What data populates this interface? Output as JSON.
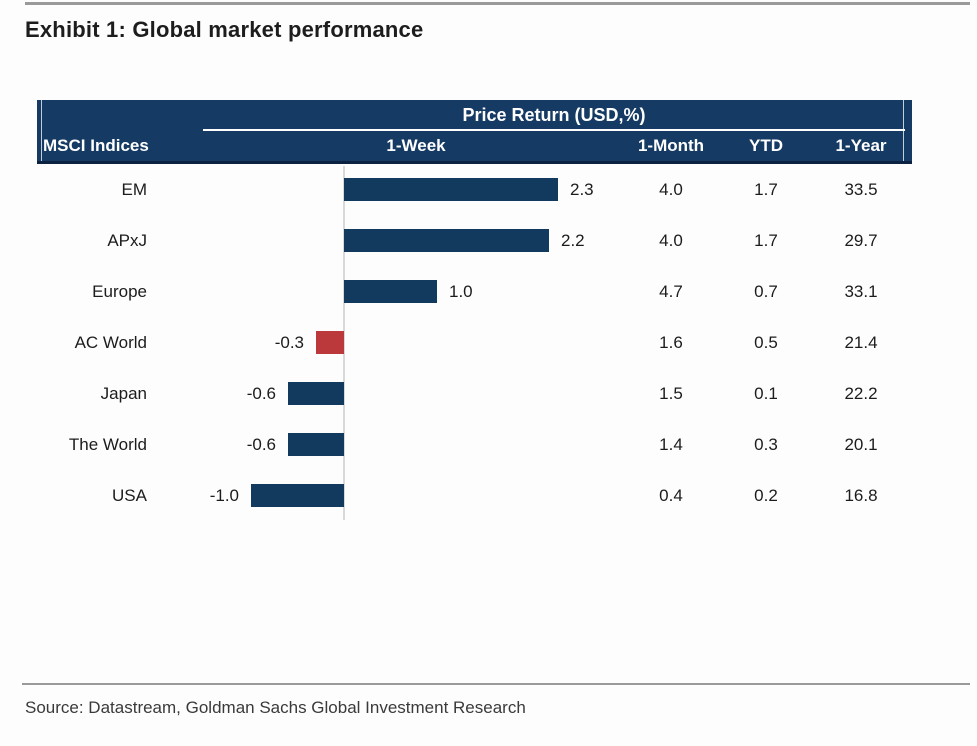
{
  "page": {
    "title": "Exhibit 1: Global market performance",
    "source": "Source: Datastream, Goldman Sachs Global Investment Research"
  },
  "table": {
    "group_header": "Price Return (USD,%)",
    "index_column_header": "MSCI Indices",
    "columns": [
      "1-Week",
      "1-Month",
      "YTD",
      "1-Year"
    ]
  },
  "chart_data": {
    "type": "bar",
    "orientation": "horizontal",
    "title": "Price Return (USD,%)",
    "xlabel": "1-Week price return (USD,%)",
    "ylabel": "MSCI Indices",
    "axis_range_estimate": [
      -1.5,
      3.0
    ],
    "grid": false,
    "legend_position": "none",
    "categories": [
      "EM",
      "APxJ",
      "Europe",
      "AC World",
      "Japan",
      "The World",
      "USA"
    ],
    "series": [
      {
        "name": "1-Week",
        "values": [
          2.3,
          2.2,
          1.0,
          -0.3,
          -0.6,
          -0.6,
          -1.0
        ],
        "rendered_as": "bars"
      },
      {
        "name": "1-Month",
        "values": [
          4.0,
          4.0,
          4.7,
          1.6,
          1.5,
          1.4,
          0.4
        ],
        "rendered_as": "table"
      },
      {
        "name": "YTD",
        "values": [
          1.7,
          1.7,
          0.7,
          0.5,
          0.1,
          0.3,
          0.2
        ],
        "rendered_as": "table"
      },
      {
        "name": "1-Year",
        "values": [
          33.5,
          29.7,
          33.1,
          21.4,
          22.2,
          20.1,
          16.8
        ],
        "rendered_as": "table"
      }
    ],
    "bar_colors": [
      "#113a5e",
      "#113a5e",
      "#113a5e",
      "#bb393b",
      "#113a5e",
      "#113a5e",
      "#113a5e"
    ]
  },
  "colors": {
    "navy-header": "#153a64",
    "navy-bar": "#113a5e",
    "red-bar": "#bb393b",
    "header-border": "#0c2240",
    "zero-line": "#d9d9d9",
    "rule-gray": "#9a9a9a"
  }
}
